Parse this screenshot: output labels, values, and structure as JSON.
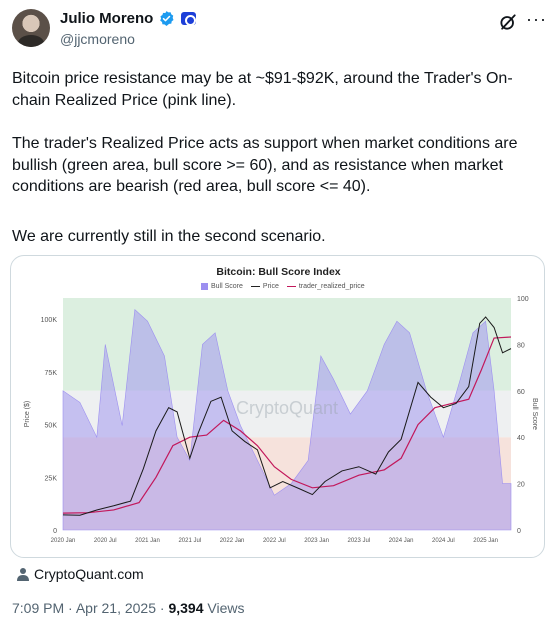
{
  "author": {
    "name": "Julio Moreno",
    "handle": "@jjcmoreno",
    "verified_color": "#1d9bf0"
  },
  "tweet": {
    "paragraphs": [
      "Bitcoin price resistance may be at ~$91-$92K, around the Trader's On-chain Realized Price (pink line).",
      "The trader's Realized Price acts as support when market conditions are bullish (green area, bull score >= 60), and as resistance when market conditions are bearish (red area, bull score <= 40).",
      "We are currently still in the second scenario."
    ]
  },
  "card": {
    "source": "CryptoQuant.com",
    "watermark": "CryptoQuant"
  },
  "meta": {
    "time": "7:09 PM",
    "date": "Apr 21, 2025",
    "separator": "·",
    "views_count": "9,394",
    "views_label": "Views"
  },
  "icons": [
    "verified-icon",
    "affiliate-badge-icon",
    "grok-icon",
    "more-icon",
    "person-icon"
  ],
  "chart_data": {
    "type": "area",
    "title": "Bitcoin: Bull Score Index",
    "legend": [
      "Bull Score",
      "Price",
      "trader_realized_price"
    ],
    "ylabel_left": "Price ($)",
    "ylabel_right": "Bull Score",
    "ylim_left": [
      0,
      110000
    ],
    "ylim_right": [
      0,
      100
    ],
    "y_ticks_left": [
      "0",
      "25K",
      "50K",
      "75K",
      "100K"
    ],
    "y_ticks_right": [
      "0",
      "20",
      "40",
      "60",
      "80",
      "100"
    ],
    "x_ticks": [
      "2020 Jan",
      "2020 Jul",
      "2021 Jan",
      "2021 Jul",
      "2022 Jan",
      "2022 Jul",
      "2023 Jan",
      "2023 Jul",
      "2024 Jan",
      "2024 Jul",
      "2025 Jan"
    ],
    "bands": [
      {
        "name": "bullish",
        "from": 60,
        "to": 100,
        "color": "#dcefe0"
      },
      {
        "name": "bearish",
        "from": 0,
        "to": 40,
        "color": "#f6e2dc"
      }
    ],
    "colors": {
      "bull_score": "#9c8ff0",
      "price": "#1a1a1a",
      "realized": "#c2185b"
    },
    "series": [
      {
        "name": "Price",
        "x": [
          2020.0,
          2020.2,
          2020.4,
          2020.6,
          2020.8,
          2020.95,
          2021.1,
          2021.25,
          2021.35,
          2021.5,
          2021.6,
          2021.75,
          2021.87,
          2022.0,
          2022.15,
          2022.3,
          2022.45,
          2022.6,
          2022.8,
          2022.95,
          2023.1,
          2023.3,
          2023.5,
          2023.7,
          2023.85,
          2024.0,
          2024.2,
          2024.35,
          2024.5,
          2024.65,
          2024.8,
          2024.93,
          2025.0,
          2025.1,
          2025.2,
          2025.3
        ],
        "values": [
          7200,
          7000,
          9500,
          11500,
          13700,
          29000,
          47000,
          58000,
          56000,
          34000,
          46000,
          61000,
          63000,
          47000,
          42000,
          38000,
          20000,
          23000,
          19500,
          16800,
          23000,
          28000,
          30000,
          26500,
          37000,
          43000,
          70000,
          63000,
          58000,
          60000,
          68000,
          98000,
          101000,
          96000,
          84000,
          86000
        ]
      },
      {
        "name": "trader_realized_price",
        "x": [
          2020.0,
          2020.3,
          2020.6,
          2020.9,
          2021.1,
          2021.3,
          2021.5,
          2021.7,
          2021.9,
          2022.1,
          2022.3,
          2022.5,
          2022.7,
          2022.95,
          2023.2,
          2023.5,
          2023.8,
          2024.0,
          2024.2,
          2024.4,
          2024.6,
          2024.8,
          2024.95,
          2025.1,
          2025.3
        ],
        "values": [
          8000,
          8200,
          9500,
          13000,
          25000,
          40000,
          44000,
          45000,
          52000,
          47000,
          40000,
          30000,
          24000,
          20000,
          21000,
          26000,
          28500,
          34000,
          50000,
          58000,
          60000,
          62000,
          76000,
          91000,
          91500
        ]
      },
      {
        "name": "Bull Score",
        "x": [
          2020.0,
          2020.2,
          2020.4,
          2020.5,
          2020.7,
          2020.85,
          2021.0,
          2021.2,
          2021.35,
          2021.5,
          2021.65,
          2021.8,
          2021.95,
          2022.1,
          2022.3,
          2022.5,
          2022.7,
          2022.9,
          2023.05,
          2023.2,
          2023.4,
          2023.6,
          2023.8,
          2023.95,
          2024.1,
          2024.3,
          2024.5,
          2024.7,
          2024.85,
          2025.0,
          2025.1,
          2025.2,
          2025.3
        ],
        "values": [
          60,
          55,
          40,
          80,
          45,
          95,
          90,
          75,
          40,
          30,
          80,
          85,
          60,
          45,
          30,
          15,
          20,
          30,
          75,
          65,
          50,
          60,
          80,
          90,
          85,
          60,
          40,
          65,
          85,
          90,
          60,
          20,
          20
        ]
      }
    ]
  }
}
